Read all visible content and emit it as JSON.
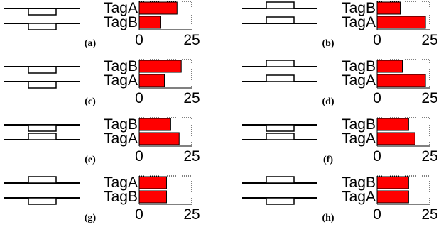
{
  "figure": {
    "panels": [
      {
        "panel_label": "(a)",
        "glyph": {
          "top_offset": "down",
          "bottom_offset": "down"
        },
        "chart_data": {
          "type": "bar",
          "orientation": "horizontal",
          "categories": [
            "TagA",
            "TagB"
          ],
          "values": [
            18,
            10
          ],
          "xlim": [
            0,
            25
          ],
          "xticks": [
            "0",
            "25"
          ],
          "bar_color": "#ff0000"
        }
      },
      {
        "panel_label": "(b)",
        "glyph": {
          "top_offset": "up",
          "bottom_offset": "up"
        },
        "chart_data": {
          "type": "bar",
          "orientation": "horizontal",
          "categories": [
            "TagB",
            "TagA"
          ],
          "values": [
            11,
            23
          ],
          "xlim": [
            0,
            25
          ],
          "xticks": [
            "0",
            "25"
          ],
          "bar_color": "#ff0000"
        }
      },
      {
        "panel_label": "(c)",
        "glyph": {
          "top_offset": "down",
          "bottom_offset": "down"
        },
        "chart_data": {
          "type": "bar",
          "orientation": "horizontal",
          "categories": [
            "TagB",
            "TagA"
          ],
          "values": [
            20,
            12
          ],
          "xlim": [
            0,
            25
          ],
          "xticks": [
            "0",
            "25"
          ],
          "bar_color": "#ff0000"
        }
      },
      {
        "panel_label": "(d)",
        "glyph": {
          "top_offset": "up",
          "bottom_offset": "up"
        },
        "chart_data": {
          "type": "bar",
          "orientation": "horizontal",
          "categories": [
            "TagB",
            "TagA"
          ],
          "values": [
            12,
            23
          ],
          "xlim": [
            0,
            25
          ],
          "xticks": [
            "0",
            "25"
          ],
          "bar_color": "#ff0000"
        }
      },
      {
        "panel_label": "(e)",
        "glyph": {
          "top_offset": "down",
          "bottom_offset": "up"
        },
        "chart_data": {
          "type": "bar",
          "orientation": "horizontal",
          "categories": [
            "TagB",
            "TagA"
          ],
          "values": [
            15,
            19
          ],
          "xlim": [
            0,
            25
          ],
          "xticks": [
            "0",
            "25"
          ],
          "bar_color": "#ff0000"
        }
      },
      {
        "panel_label": "(f)",
        "glyph": {
          "top_offset": "down",
          "bottom_offset": "up"
        },
        "chart_data": {
          "type": "bar",
          "orientation": "horizontal",
          "categories": [
            "TagB",
            "TagA"
          ],
          "values": [
            15,
            18
          ],
          "xlim": [
            0,
            25
          ],
          "xticks": [
            "0",
            "25"
          ],
          "bar_color": "#ff0000"
        }
      },
      {
        "panel_label": "(g)",
        "glyph": {
          "top_offset": "up",
          "bottom_offset": "down"
        },
        "chart_data": {
          "type": "bar",
          "orientation": "horizontal",
          "categories": [
            "TagA",
            "TagB"
          ],
          "values": [
            13,
            13
          ],
          "xlim": [
            0,
            25
          ],
          "xticks": [
            "0",
            "25"
          ],
          "bar_color": "#ff0000"
        }
      },
      {
        "panel_label": "(h)",
        "glyph": {
          "top_offset": "up",
          "bottom_offset": "down"
        },
        "chart_data": {
          "type": "bar",
          "orientation": "horizontal",
          "categories": [
            "TagB",
            "TagA"
          ],
          "values": [
            15,
            15
          ],
          "xlim": [
            0,
            25
          ],
          "xticks": [
            "0",
            "25"
          ],
          "bar_color": "#ff0000"
        }
      }
    ]
  }
}
